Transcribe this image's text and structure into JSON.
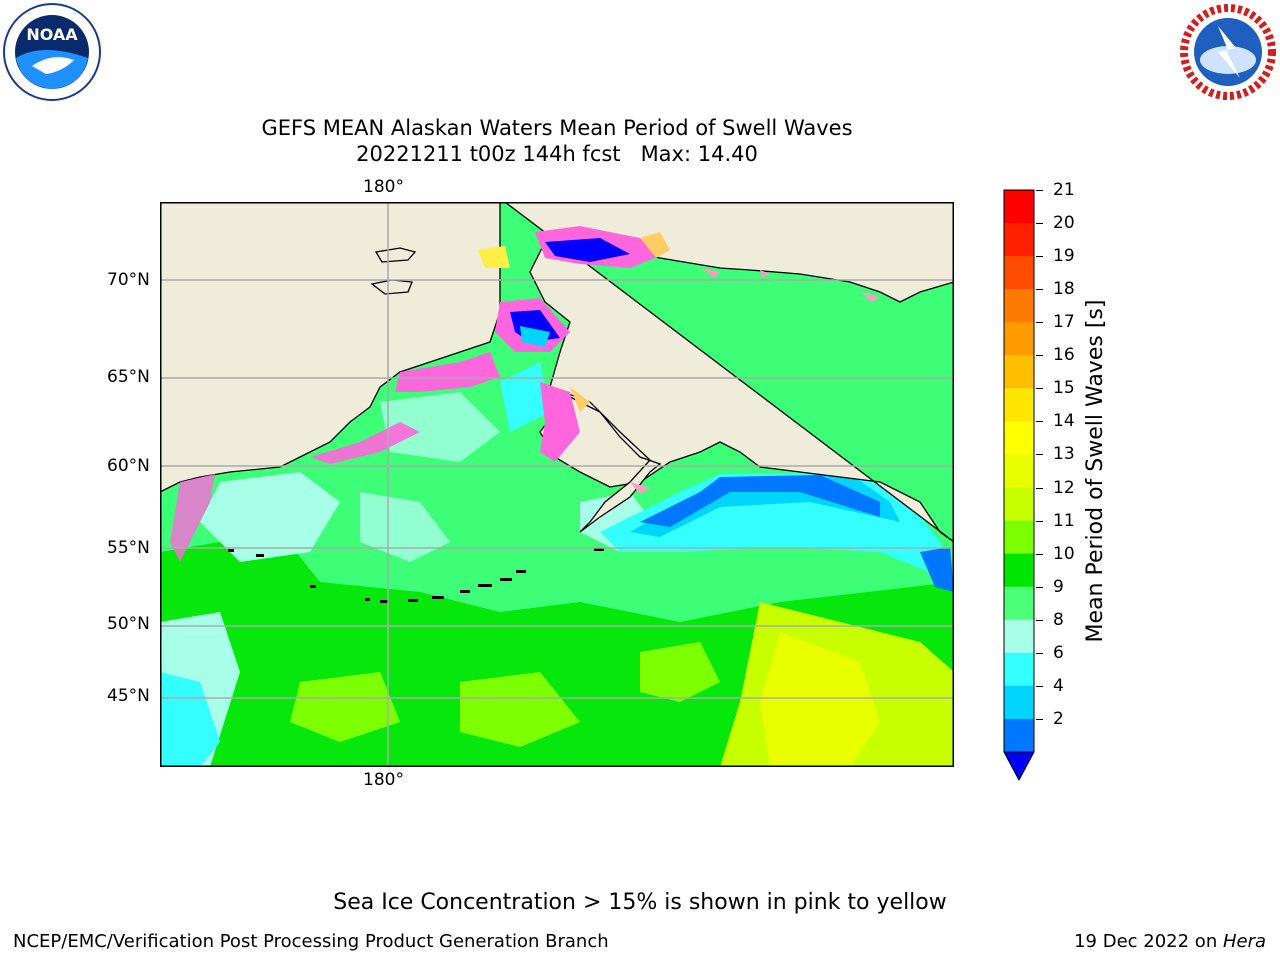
{
  "logos": {
    "left": {
      "name": "NOAA",
      "ring_text": "NATIONAL OCEANIC AND ATMOSPHERIC ADMINISTRATION · U.S. DEPARTMENT OF COMMERCE"
    },
    "right": {
      "name": "NATIONAL WEATHER SERVICE"
    }
  },
  "title": {
    "line1": "GEFS MEAN Alaskan Waters Mean Period of Swell Waves",
    "line2": "20221211 t00z 144h fcst   Max: 14.40"
  },
  "map": {
    "lon_label_top": "180°",
    "lon_label_bottom": "180°",
    "lat_labels": [
      "70°N",
      "65°N",
      "60°N",
      "55°N",
      "50°N",
      "45°N"
    ]
  },
  "colorbar": {
    "label": "Mean Period of Swell Waves [s]",
    "ticks": [
      "21",
      "20",
      "19",
      "18",
      "17",
      "16",
      "15",
      "14",
      "13",
      "12",
      "11",
      "10",
      "9",
      "8",
      "6",
      "4",
      "2"
    ],
    "colors": [
      "#ff0000",
      "#ff2000",
      "#ff4d00",
      "#ff7a00",
      "#ff9a00",
      "#ffbe00",
      "#ffe600",
      "#ffff00",
      "#e8ff00",
      "#c8ff00",
      "#7cff00",
      "#00e600",
      "#4dff77",
      "#a6ffe6",
      "#33ffff",
      "#00d4ff",
      "#0077ff"
    ],
    "under_color": "#0000ff",
    "land_color": "#efedd9",
    "ice_colors": [
      "#ff66dd",
      "#ff99cc",
      "#ffcc66",
      "#ffee44"
    ]
  },
  "caption": "Sea Ice Concentration > 15% is shown in pink to yellow",
  "footer": {
    "left": "NCEP/EMC/Verification Post Processing Product Generation Branch",
    "date": "19 Dec 2022 on ",
    "machine": "Hera"
  }
}
